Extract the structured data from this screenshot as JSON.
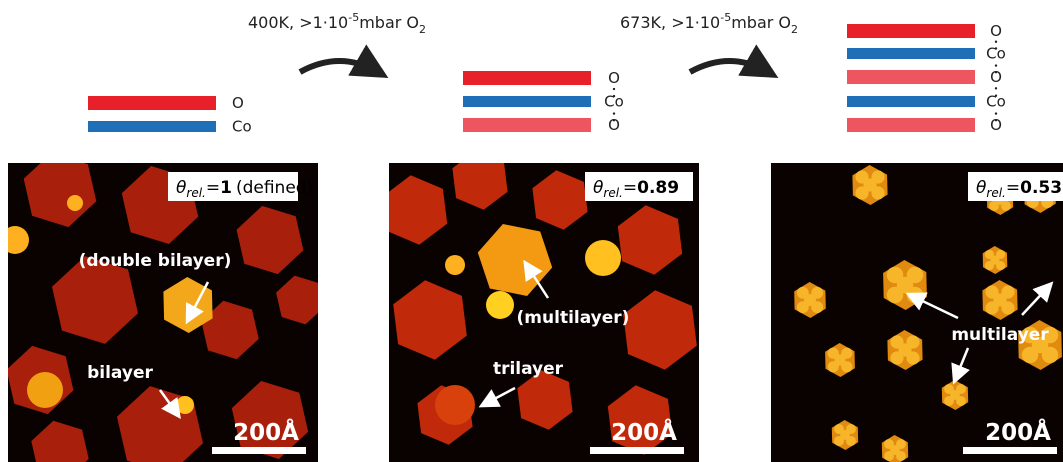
{
  "steps": [
    {
      "condition": "400K, >1·10",
      "exponent": "-5",
      "gas": "mbar O",
      "subscript": "2"
    },
    {
      "condition": "673K, >1·10",
      "exponent": "-5",
      "gas": "mbar O",
      "subscript": "2"
    }
  ],
  "stacks": [
    {
      "labels": [
        "O",
        "Co"
      ]
    },
    {
      "labels": [
        "O",
        "Co",
        "O"
      ]
    },
    {
      "labels": [
        "O",
        "Co",
        "O",
        "Co",
        "O"
      ]
    }
  ],
  "panels": [
    {
      "symbol": "θ",
      "subscript": "rel.",
      "equals": "=",
      "coverage": "1",
      "note": "(defined)",
      "annotations": [
        "(double bilayer)",
        "bilayer"
      ],
      "scale_bar": "200Å"
    },
    {
      "symbol": "θ",
      "subscript": "rel.",
      "equals": "=",
      "coverage": "0.89",
      "annotations": [
        "(multilayer)",
        "trilayer"
      ],
      "scale_bar": "200Å"
    },
    {
      "symbol": "θ",
      "subscript": "rel.",
      "equals": "=",
      "coverage": "0.53",
      "annotations": [
        "multilayer"
      ],
      "scale_bar": "200Å"
    }
  ]
}
